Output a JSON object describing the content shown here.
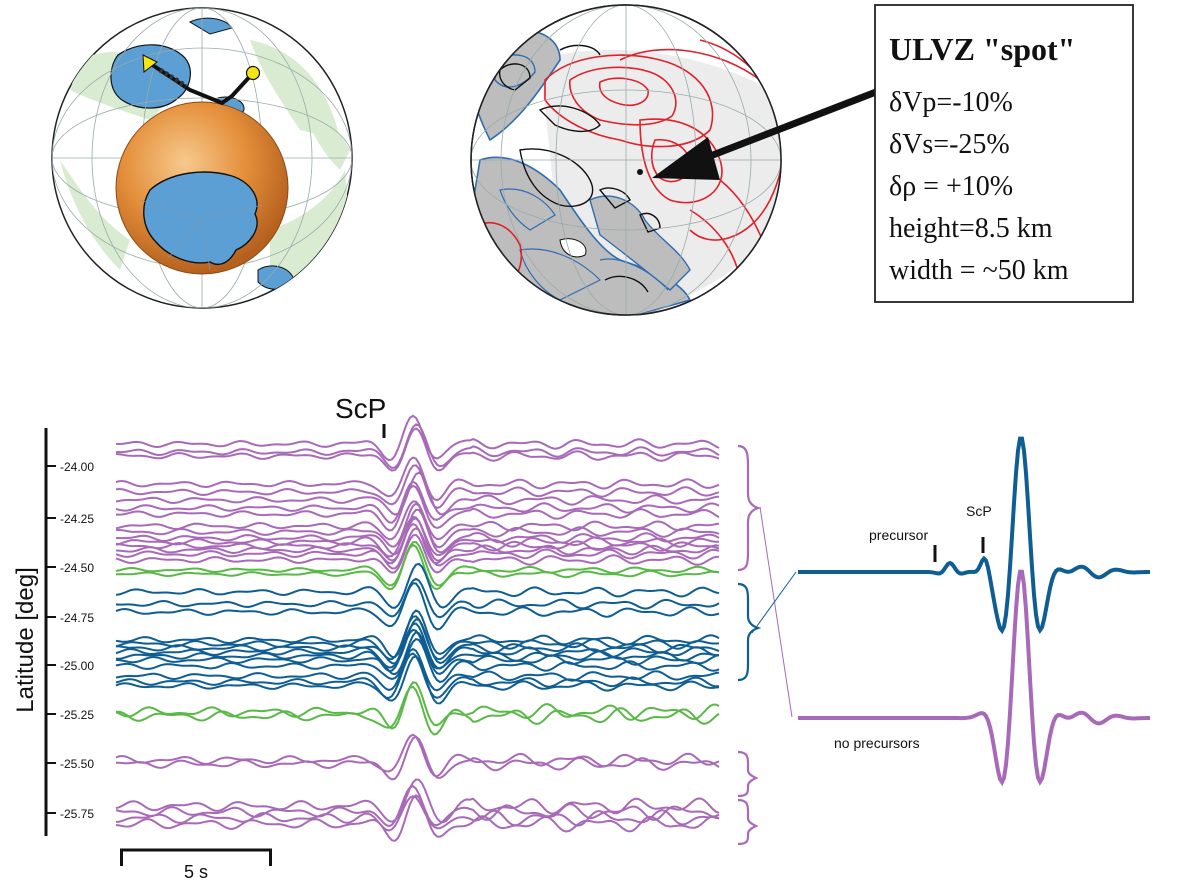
{
  "ulvz_box": {
    "title": "ULVZ \"spot\"",
    "lines": [
      "δVp=-10%",
      "δVs=-25%",
      "δρ = +10%",
      "height=8.5 km",
      "width = ~50 km"
    ]
  },
  "seismogram_panel": {
    "phase_label": "ScP",
    "axis_label": "Latitude [deg]",
    "tick_labels": [
      "-24.00",
      "-24.25",
      "-24.50",
      "-24.75",
      "-25.00",
      "-25.25",
      "-25.50",
      "-25.75"
    ],
    "scale_bar_label": "5 s"
  },
  "stack_panel": {
    "precursor_label": "precursor",
    "phase_label": "ScP",
    "no_precursor_label": "no precursors"
  },
  "colors": {
    "purple": "#a86ab8",
    "green": "#59b946",
    "blue": "#0f5e93",
    "red": "#e0202a",
    "ocean": "#5b9fd4",
    "land": "#d9ecd2",
    "core": "#e48f3a",
    "grey": "#bdbdbd",
    "yellow": "#f5e514"
  }
}
